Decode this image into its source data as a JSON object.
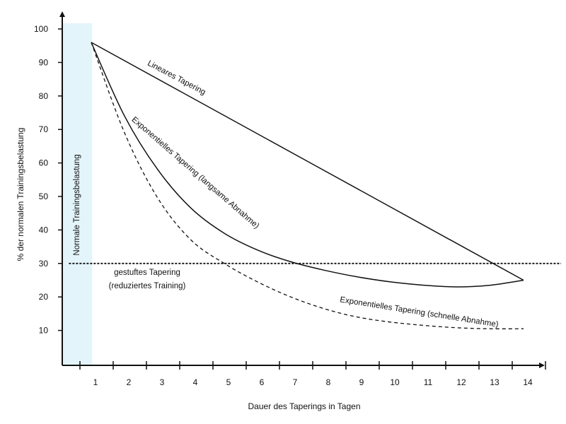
{
  "chart_data": {
    "type": "line",
    "title": "",
    "xlabel": "Dauer des Taperings in Tagen",
    "ylabel": "% der normalen Trainingsbelastung",
    "x_ticks": [
      1,
      2,
      3,
      4,
      5,
      6,
      7,
      8,
      9,
      10,
      11,
      12,
      13,
      14
    ],
    "y_ticks": [
      10,
      20,
      30,
      40,
      50,
      60,
      70,
      80,
      90,
      100
    ],
    "xlim": [
      0,
      15
    ],
    "ylim": [
      0,
      105
    ],
    "shaded_region": {
      "label": "Normale Trainingsbelastung",
      "x_from": 0,
      "x_to": 0.9,
      "color": "#e3f4fb"
    },
    "series": [
      {
        "name": "Lineares Tapering",
        "style": "solid",
        "x": [
          1,
          14
        ],
        "values": [
          96,
          25
        ]
      },
      {
        "name": "Exponentielles Tapering (langsame Abnahme)",
        "style": "solid",
        "x": [
          1,
          2,
          3,
          4,
          5,
          6,
          7,
          8,
          9,
          10,
          11,
          12,
          13,
          14
        ],
        "values": [
          96,
          74,
          58,
          46.5,
          39,
          34,
          30.5,
          28,
          26,
          24.5,
          23.5,
          23,
          23.5,
          25
        ]
      },
      {
        "name": "Exponentielles Tapering (schnelle Abnahme)",
        "style": "dashed",
        "x": [
          1,
          2,
          3,
          4,
          5,
          6,
          7,
          8,
          9,
          10,
          11,
          12,
          13,
          14
        ],
        "values": [
          96,
          69,
          49.5,
          37,
          30,
          24.5,
          20,
          16.5,
          14,
          12.5,
          11.5,
          10.8,
          10.5,
          10.5
        ]
      },
      {
        "name": "gestuftes Tapering (reduziertes Training)",
        "style": "dotted",
        "x": [
          0.2,
          15
        ],
        "values": [
          30,
          30
        ]
      }
    ],
    "annotations": {
      "linear": "Lineares Tapering",
      "slow": "Exponentielles Tapering (langsame Abnahme)",
      "fast": "Exponentielles Tapering (schnelle Abnahme)",
      "step_line1": "gestuftes Tapering",
      "step_line2": "(reduziertes Training)"
    },
    "colors": {
      "line": "#111111",
      "shade": "#e3f4fb"
    }
  }
}
